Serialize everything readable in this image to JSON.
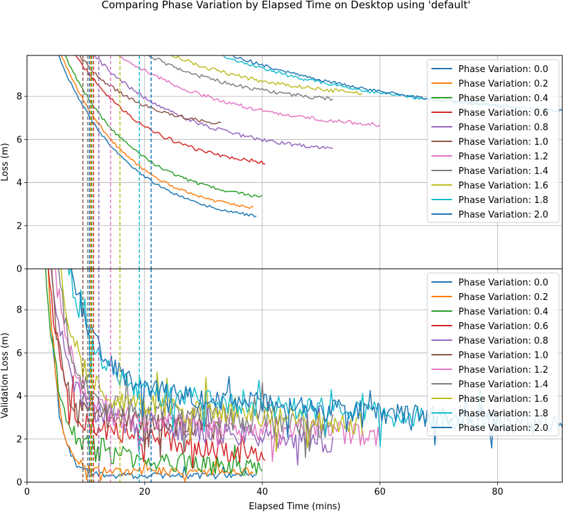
{
  "title": "Comparing Phase Variation by Elapsed Time on Desktop using 'default'",
  "chart_data": [
    {
      "id": "top",
      "type": "line",
      "title": "",
      "xlabel": "",
      "ylabel": "Loss (m)",
      "xlim": [
        0,
        91
      ],
      "ylim": [
        0,
        9.9
      ],
      "yticks": [
        0,
        2,
        4,
        6,
        8
      ],
      "grid": true,
      "legend_placement": "top-right",
      "series": [
        {
          "name": "Phase Variation: 0.0",
          "color": "#1f77b4",
          "t_start": 4.5,
          "t_end": 39,
          "y_start": 10.5,
          "y_end": 2.0,
          "decay": 0.9,
          "noise": 0.04,
          "vline": 10.6
        },
        {
          "name": "Phase Variation: 0.2",
          "color": "#ff7f0e",
          "t_start": 5.0,
          "t_end": 38.5,
          "y_start": 10.5,
          "y_end": 2.4,
          "decay": 0.9,
          "noise": 0.04,
          "vline": 10.8
        },
        {
          "name": "Phase Variation: 0.4",
          "color": "#2ca02c",
          "t_start": 5.5,
          "t_end": 40,
          "y_start": 10.5,
          "y_end": 2.95,
          "decay": 0.9,
          "noise": 0.05,
          "vline": 11.0
        },
        {
          "name": "Phase Variation: 0.6",
          "color": "#d62728",
          "t_start": 6.5,
          "t_end": 40.5,
          "y_start": 10.8,
          "y_end": 4.55,
          "decay": 0.85,
          "noise": 0.06,
          "vline": 11.3
        },
        {
          "name": "Phase Variation: 0.8",
          "color": "#9467bd",
          "t_start": 7.5,
          "t_end": 52,
          "y_start": 11.2,
          "y_end": 5.2,
          "decay": 0.85,
          "noise": 0.06,
          "vline": 12.2
        },
        {
          "name": "Phase Variation: 1.0",
          "color": "#8c564b",
          "t_start": 6.0,
          "t_end": 33,
          "y_start": 11.0,
          "y_end": 6.4,
          "decay": 0.8,
          "noise": 0.06,
          "vline": 9.5
        },
        {
          "name": "Phase Variation: 1.2",
          "color": "#e377c2",
          "t_start": 8.5,
          "t_end": 60,
          "y_start": 11.5,
          "y_end": 6.3,
          "decay": 0.8,
          "noise": 0.06,
          "vline": 14.2
        },
        {
          "name": "Phase Variation: 1.4",
          "color": "#7f7f7f",
          "t_start": 10,
          "t_end": 52,
          "y_start": 12.0,
          "y_end": 7.5,
          "decay": 0.75,
          "noise": 0.06,
          "vline": 10.3
        },
        {
          "name": "Phase Variation: 1.6",
          "color": "#bcbd22",
          "t_start": 12,
          "t_end": 57,
          "y_start": 12.0,
          "y_end": 7.8,
          "decay": 0.75,
          "noise": 0.06,
          "vline": 15.8
        },
        {
          "name": "Phase Variation: 1.8",
          "color": "#17becf",
          "t_start": 14,
          "t_end": 82,
          "y_start": 12.5,
          "y_end": 7.0,
          "decay": 0.7,
          "noise": 0.05,
          "vline": 19.1
        },
        {
          "name": "Phase Variation: 2.0",
          "color": "#1f77b4",
          "t_start": 15,
          "t_end": 91,
          "y_start": 12.5,
          "y_end": 6.75,
          "decay": 0.7,
          "noise": 0.05,
          "vline": 21.1
        }
      ]
    },
    {
      "id": "bottom",
      "type": "line",
      "title": "",
      "xlabel": "Elapsed Time (mins)",
      "ylabel": "Validation Loss (m)",
      "xlim": [
        0,
        91
      ],
      "ylim": [
        0,
        9.9
      ],
      "xticks": [
        0,
        20,
        40,
        60,
        80
      ],
      "yticks": [
        0,
        2,
        4,
        6,
        8
      ],
      "grid": true,
      "legend_placement": "top-right",
      "series": [
        {
          "name": "Phase Variation: 0.0",
          "color": "#1f77b4",
          "t_start": 3.5,
          "t_end": 39,
          "y_start": 10.5,
          "y_end": 0.3,
          "floor_start": 0.3,
          "decay": 3.5,
          "noise": 0.15,
          "vline": 10.6
        },
        {
          "name": "Phase Variation: 0.2",
          "color": "#ff7f0e",
          "t_start": 3.5,
          "t_end": 38.5,
          "y_start": 10.5,
          "y_end": 0.5,
          "floor_start": 0.5,
          "decay": 3.5,
          "noise": 0.2,
          "vline": 10.8
        },
        {
          "name": "Phase Variation: 0.4",
          "color": "#2ca02c",
          "t_start": 3.0,
          "t_end": 40,
          "y_start": 10.5,
          "y_end": 0.6,
          "floor_start": 1.4,
          "decay": 2.8,
          "noise": 0.45,
          "vline": 11.0
        },
        {
          "name": "Phase Variation: 0.6",
          "color": "#d62728",
          "t_start": 3.5,
          "t_end": 40.5,
          "y_start": 10.5,
          "y_end": 1.2,
          "floor_start": 2.8,
          "decay": 3.0,
          "noise": 0.5,
          "vline": 11.3
        },
        {
          "name": "Phase Variation: 0.8",
          "color": "#9467bd",
          "t_start": 4.0,
          "t_end": 52,
          "y_start": 10.5,
          "y_end": 1.8,
          "floor_start": 3.0,
          "decay": 3.0,
          "noise": 0.55,
          "vline": 12.2
        },
        {
          "name": "Phase Variation: 1.0",
          "color": "#8c564b",
          "t_start": 4.0,
          "t_end": 33,
          "y_start": 10.5,
          "y_end": 2.5,
          "floor_start": 3.2,
          "decay": 3.0,
          "noise": 0.55,
          "vline": 9.5
        },
        {
          "name": "Phase Variation: 1.2",
          "color": "#e377c2",
          "t_start": 4.5,
          "t_end": 60,
          "y_start": 10.5,
          "y_end": 2.2,
          "floor_start": 3.0,
          "decay": 3.0,
          "noise": 0.55,
          "vline": 14.2
        },
        {
          "name": "Phase Variation: 1.4",
          "color": "#7f7f7f",
          "t_start": 5.0,
          "t_end": 52,
          "y_start": 10.5,
          "y_end": 2.6,
          "floor_start": 3.6,
          "decay": 3.0,
          "noise": 0.6,
          "vline": 10.3
        },
        {
          "name": "Phase Variation: 1.6",
          "color": "#bcbd22",
          "t_start": 5.5,
          "t_end": 57,
          "y_start": 10.5,
          "y_end": 2.7,
          "floor_start": 3.8,
          "decay": 3.0,
          "noise": 0.55,
          "vline": 15.8
        },
        {
          "name": "Phase Variation: 1.8",
          "color": "#17becf",
          "t_start": 6.5,
          "t_end": 82,
          "y_start": 10.5,
          "y_end": 2.7,
          "floor_start": 4.3,
          "decay": 3.0,
          "noise": 0.55,
          "vline": 19.1
        },
        {
          "name": "Phase Variation: 2.0",
          "color": "#1f77b4",
          "t_start": 7.0,
          "t_end": 91,
          "y_start": 10.5,
          "y_end": 2.6,
          "floor_start": 4.3,
          "decay": 3.0,
          "noise": 0.5,
          "vline": 21.1
        }
      ]
    }
  ]
}
